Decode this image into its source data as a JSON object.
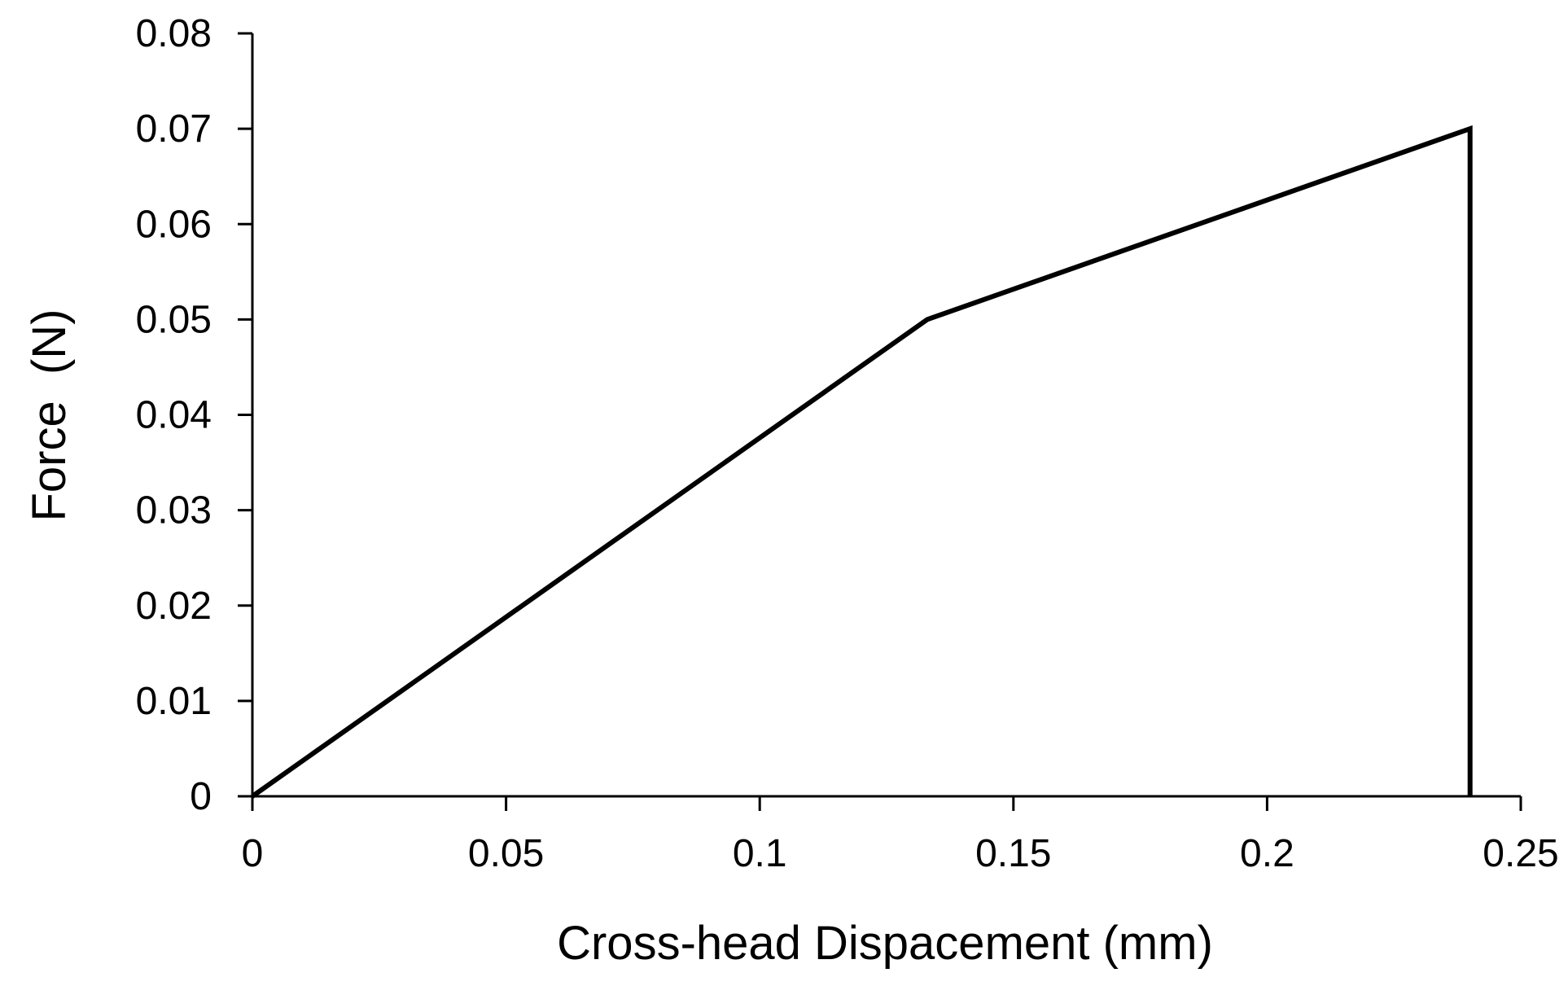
{
  "chart_data": {
    "type": "line",
    "title": "",
    "xlabel": "Cross-head Dispacement (mm)",
    "ylabel": "Force  (N)",
    "xlim": [
      0,
      0.25
    ],
    "ylim": [
      0,
      0.08
    ],
    "x_ticks": [
      "0",
      "0.05",
      "0.1",
      "0.15",
      "0.2",
      "0.25"
    ],
    "y_ticks": [
      "0",
      "0.01",
      "0.02",
      "0.03",
      "0.04",
      "0.05",
      "0.06",
      "0.07",
      "0.08"
    ],
    "grid": false,
    "legend": "none",
    "series": [
      {
        "color": "#000000",
        "x": [
          0,
          0.133,
          0.24,
          0.24
        ],
        "y": [
          0,
          0.05,
          0.07,
          0
        ]
      }
    ]
  }
}
